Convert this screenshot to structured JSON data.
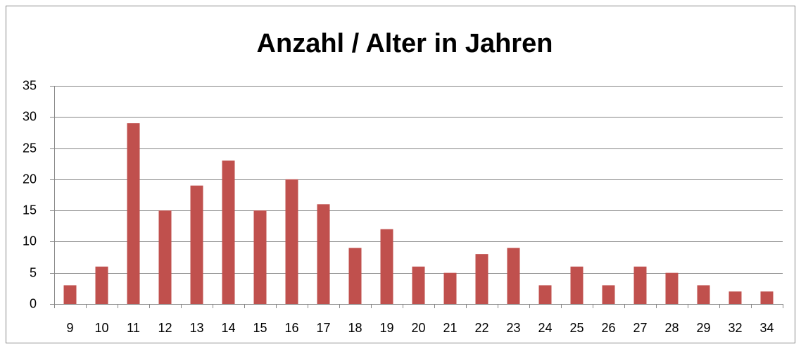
{
  "chart_data": {
    "type": "bar",
    "title": "Anzahl / Alter in Jahren",
    "categories": [
      "9",
      "10",
      "11",
      "12",
      "13",
      "14",
      "15",
      "16",
      "17",
      "18",
      "19",
      "20",
      "21",
      "22",
      "23",
      "24",
      "25",
      "26",
      "27",
      "28",
      "29",
      "32",
      "34"
    ],
    "values": [
      3,
      6,
      29,
      15,
      19,
      23,
      15,
      20,
      16,
      9,
      12,
      6,
      5,
      8,
      9,
      3,
      6,
      3,
      6,
      5,
      3,
      2,
      2
    ],
    "color": "#c0504d",
    "ylim": [
      0,
      35
    ],
    "yticks": [
      0,
      5,
      10,
      15,
      20,
      25,
      30,
      35
    ],
    "grid": true
  }
}
